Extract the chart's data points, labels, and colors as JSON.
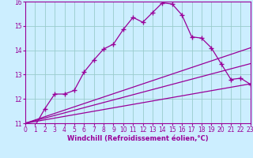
{
  "xlabel": "Windchill (Refroidissement éolien,°C)",
  "xlim": [
    0,
    23
  ],
  "ylim": [
    11,
    16
  ],
  "yticks": [
    11,
    12,
    13,
    14,
    15,
    16
  ],
  "xticks": [
    0,
    1,
    2,
    3,
    4,
    5,
    6,
    7,
    8,
    9,
    10,
    11,
    12,
    13,
    14,
    15,
    16,
    17,
    18,
    19,
    20,
    21,
    22,
    23
  ],
  "background_color": "#cceeff",
  "line_color": "#990099",
  "grid_color": "#99cccc",
  "lines": [
    {
      "x": [
        0,
        1,
        2,
        3,
        4,
        5,
        6,
        7,
        8,
        9,
        10,
        11,
        12,
        13,
        14,
        15,
        16,
        17,
        18,
        19,
        20,
        21,
        22,
        23
      ],
      "y": [
        11.0,
        10.9,
        11.6,
        12.2,
        12.2,
        12.35,
        13.1,
        13.6,
        14.05,
        14.25,
        14.85,
        15.35,
        15.15,
        15.55,
        15.95,
        15.9,
        15.45,
        14.55,
        14.5,
        14.1,
        13.45,
        12.8,
        12.85,
        12.6
      ],
      "marker": true
    },
    {
      "x": [
        0,
        23
      ],
      "y": [
        11.0,
        14.1
      ],
      "marker": false
    },
    {
      "x": [
        0,
        23
      ],
      "y": [
        11.0,
        13.45
      ],
      "marker": false
    },
    {
      "x": [
        0,
        23
      ],
      "y": [
        11.0,
        12.62
      ],
      "marker": false
    }
  ]
}
